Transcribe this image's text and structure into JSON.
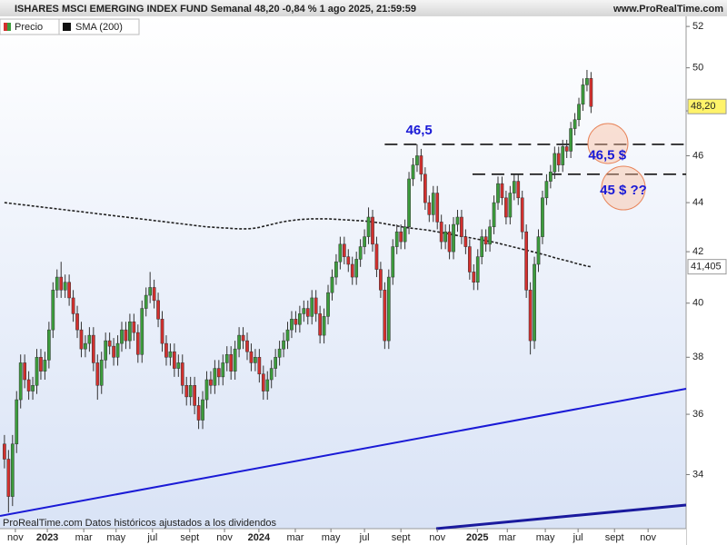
{
  "header": {
    "title": "ISHARES MSCI EMERGING INDEX FUND Semanal 48,20 -0,84 % 1 ago 2025, 21:59:59",
    "site": "www.ProRealTime.com"
  },
  "footer": "ProRealTime.com Datos históricos ajustados a los dividendos",
  "chart_data": {
    "type": "candlestick",
    "log_scale": true,
    "up_color": "#3c9c3c",
    "down_color": "#d2302e",
    "legend": [
      "Precio",
      "SMA (200)"
    ],
    "ylim": [
      32.3,
      52.5
    ],
    "yticks": [
      34,
      36,
      38,
      40,
      42,
      44,
      46,
      48,
      50,
      52
    ],
    "xlim": [
      -1.1,
      168.5
    ],
    "xticks": [
      {
        "value": 2.7,
        "label": "nov"
      },
      {
        "value": 10.6,
        "label": "2023"
      },
      {
        "value": 19.6,
        "label": "mar"
      },
      {
        "value": 27.6,
        "label": "may"
      },
      {
        "value": 36.6,
        "label": "jul"
      },
      {
        "value": 45.8,
        "label": "sept"
      },
      {
        "value": 54.4,
        "label": "nov"
      },
      {
        "value": 62.9,
        "label": "2024"
      },
      {
        "value": 71.9,
        "label": "mar"
      },
      {
        "value": 80.7,
        "label": "may"
      },
      {
        "value": 89,
        "label": "jul"
      },
      {
        "value": 98,
        "label": "sept"
      },
      {
        "value": 107,
        "label": "nov"
      },
      {
        "value": 116.9,
        "label": "2025"
      },
      {
        "value": 124.3,
        "label": "mar"
      },
      {
        "value": 133.7,
        "label": "may"
      },
      {
        "value": 141.8,
        "label": "jul"
      },
      {
        "value": 150.8,
        "label": "sept"
      },
      {
        "value": 159.1,
        "label": "nov"
      }
    ],
    "ohlc": [
      [
        35.0,
        35.3,
        34.2,
        34.5
      ],
      [
        34.5,
        34.8,
        32.8,
        33.3
      ],
      [
        33.3,
        35.3,
        33.0,
        35.0
      ],
      [
        35.0,
        36.8,
        34.7,
        36.5
      ],
      [
        36.5,
        38.1,
        36.2,
        37.8
      ],
      [
        37.8,
        38.1,
        36.9,
        37.2
      ],
      [
        37.2,
        37.5,
        36.5,
        36.8
      ],
      [
        36.8,
        37.3,
        36.5,
        37.0
      ],
      [
        37.0,
        38.3,
        36.7,
        38.0
      ],
      [
        38.0,
        38.3,
        37.2,
        37.5
      ],
      [
        37.5,
        38.2,
        37.2,
        37.9
      ],
      [
        37.9,
        39.3,
        37.6,
        39.0
      ],
      [
        39.0,
        40.8,
        38.7,
        40.5
      ],
      [
        40.5,
        41.3,
        40.2,
        41.0
      ],
      [
        41.0,
        41.6,
        40.2,
        40.5
      ],
      [
        40.5,
        41.1,
        40.2,
        40.8
      ],
      [
        40.8,
        41.1,
        39.9,
        40.2
      ],
      [
        40.2,
        40.5,
        39.3,
        39.6
      ],
      [
        39.6,
        39.9,
        38.7,
        39.0
      ],
      [
        39.0,
        39.3,
        38.0,
        38.3
      ],
      [
        38.3,
        38.8,
        38.0,
        38.5
      ],
      [
        38.5,
        39.1,
        38.2,
        38.8
      ],
      [
        38.8,
        39.1,
        37.5,
        37.8
      ],
      [
        37.8,
        38.1,
        36.5,
        37.0
      ],
      [
        37.0,
        38.2,
        36.7,
        37.9
      ],
      [
        37.9,
        38.9,
        37.6,
        38.6
      ],
      [
        38.6,
        38.9,
        38.1,
        38.4
      ],
      [
        38.4,
        38.7,
        37.7,
        38.0
      ],
      [
        38.0,
        38.8,
        37.7,
        38.5
      ],
      [
        38.5,
        39.3,
        38.2,
        39.0
      ],
      [
        39.0,
        39.3,
        38.3,
        38.6
      ],
      [
        38.6,
        39.6,
        38.3,
        39.3
      ],
      [
        39.3,
        39.6,
        38.6,
        38.9
      ],
      [
        38.9,
        39.2,
        37.8,
        38.1
      ],
      [
        38.1,
        40.1,
        37.8,
        39.8
      ],
      [
        39.8,
        40.6,
        39.5,
        40.3
      ],
      [
        40.3,
        41.2,
        40.0,
        40.6
      ],
      [
        40.6,
        40.9,
        39.8,
        40.1
      ],
      [
        40.1,
        40.4,
        39.1,
        39.4
      ],
      [
        39.4,
        39.7,
        38.2,
        38.5
      ],
      [
        38.5,
        38.8,
        37.7,
        38.0
      ],
      [
        38.0,
        38.5,
        37.7,
        38.2
      ],
      [
        38.2,
        38.5,
        37.3,
        37.6
      ],
      [
        37.6,
        38.1,
        37.3,
        37.8
      ],
      [
        37.8,
        38.1,
        36.7,
        37.0
      ],
      [
        37.0,
        37.3,
        36.3,
        36.6
      ],
      [
        36.6,
        37.3,
        36.3,
        37.0
      ],
      [
        37.0,
        37.3,
        36.0,
        36.3
      ],
      [
        36.3,
        36.6,
        35.5,
        35.8
      ],
      [
        35.8,
        36.8,
        35.5,
        36.5
      ],
      [
        36.5,
        37.5,
        36.2,
        37.2
      ],
      [
        37.2,
        37.5,
        36.7,
        37.0
      ],
      [
        37.0,
        37.9,
        36.7,
        37.6
      ],
      [
        37.6,
        37.9,
        37.0,
        37.3
      ],
      [
        37.3,
        38.1,
        37.0,
        37.8
      ],
      [
        37.8,
        38.4,
        37.5,
        38.1
      ],
      [
        38.1,
        38.4,
        37.2,
        37.5
      ],
      [
        37.5,
        38.6,
        37.2,
        38.3
      ],
      [
        38.3,
        39.1,
        38.0,
        38.8
      ],
      [
        38.8,
        39.1,
        38.3,
        38.6
      ],
      [
        38.6,
        38.9,
        37.9,
        38.2
      ],
      [
        38.2,
        38.5,
        37.5,
        37.8
      ],
      [
        37.8,
        38.3,
        37.5,
        38.0
      ],
      [
        38.0,
        38.3,
        37.1,
        37.4
      ],
      [
        37.4,
        37.7,
        36.5,
        36.8
      ],
      [
        36.8,
        37.5,
        36.5,
        37.2
      ],
      [
        37.2,
        37.9,
        36.9,
        37.6
      ],
      [
        37.6,
        38.3,
        37.3,
        38.0
      ],
      [
        38.0,
        38.6,
        37.7,
        38.3
      ],
      [
        38.3,
        38.9,
        38.0,
        38.6
      ],
      [
        38.6,
        39.3,
        38.3,
        39.0
      ],
      [
        39.0,
        39.7,
        38.7,
        39.4
      ],
      [
        39.4,
        39.7,
        38.9,
        39.2
      ],
      [
        39.2,
        39.9,
        38.9,
        39.6
      ],
      [
        39.6,
        40.1,
        39.3,
        39.8
      ],
      [
        39.8,
        40.1,
        39.2,
        39.5
      ],
      [
        39.5,
        40.5,
        39.2,
        40.2
      ],
      [
        40.2,
        40.5,
        39.3,
        39.6
      ],
      [
        39.6,
        39.9,
        38.5,
        38.8
      ],
      [
        38.8,
        39.8,
        38.5,
        39.5
      ],
      [
        39.5,
        40.7,
        39.2,
        40.4
      ],
      [
        40.4,
        41.3,
        40.1,
        41.0
      ],
      [
        41.0,
        41.9,
        40.7,
        41.6
      ],
      [
        41.6,
        42.6,
        41.3,
        42.3
      ],
      [
        42.3,
        42.6,
        41.5,
        41.8
      ],
      [
        41.8,
        42.1,
        41.2,
        41.5
      ],
      [
        41.5,
        41.8,
        40.7,
        41.0
      ],
      [
        41.0,
        42.0,
        40.7,
        41.7
      ],
      [
        41.7,
        42.5,
        41.4,
        42.2
      ],
      [
        42.2,
        42.9,
        41.9,
        42.6
      ],
      [
        42.6,
        43.8,
        42.3,
        43.4
      ],
      [
        43.4,
        43.7,
        42.0,
        42.3
      ],
      [
        42.3,
        42.6,
        41.0,
        41.3
      ],
      [
        41.3,
        41.6,
        40.2,
        40.5
      ],
      [
        40.5,
        40.8,
        38.3,
        38.6
      ],
      [
        38.6,
        41.3,
        38.3,
        41.0
      ],
      [
        41.0,
        42.5,
        40.7,
        42.2
      ],
      [
        42.2,
        43.1,
        41.9,
        42.8
      ],
      [
        42.8,
        43.1,
        42.1,
        42.4
      ],
      [
        42.4,
        43.3,
        42.1,
        43.0
      ],
      [
        43.0,
        45.3,
        42.7,
        45.0
      ],
      [
        45.0,
        45.9,
        44.7,
        45.6
      ],
      [
        45.6,
        46.5,
        45.3,
        46.0
      ],
      [
        46.0,
        46.3,
        44.9,
        45.2
      ],
      [
        45.2,
        45.5,
        43.7,
        44.0
      ],
      [
        44.0,
        44.3,
        43.2,
        43.5
      ],
      [
        43.5,
        44.7,
        43.2,
        44.4
      ],
      [
        44.4,
        44.7,
        42.9,
        43.2
      ],
      [
        43.2,
        43.5,
        42.1,
        42.4
      ],
      [
        42.4,
        43.1,
        42.1,
        42.8
      ],
      [
        42.8,
        43.1,
        41.7,
        42.0
      ],
      [
        42.0,
        43.4,
        41.7,
        43.1
      ],
      [
        43.1,
        43.7,
        42.8,
        43.4
      ],
      [
        43.4,
        43.7,
        42.3,
        42.6
      ],
      [
        42.6,
        42.9,
        41.9,
        42.2
      ],
      [
        42.2,
        42.5,
        40.9,
        41.2
      ],
      [
        41.2,
        41.5,
        40.5,
        40.8
      ],
      [
        40.8,
        42.1,
        40.5,
        41.8
      ],
      [
        41.8,
        42.9,
        41.5,
        42.6
      ],
      [
        42.6,
        42.9,
        42.0,
        42.3
      ],
      [
        42.3,
        43.3,
        42.0,
        43.0
      ],
      [
        43.0,
        44.3,
        42.7,
        44.0
      ],
      [
        44.0,
        45.1,
        43.7,
        44.8
      ],
      [
        44.8,
        45.1,
        43.9,
        44.2
      ],
      [
        44.2,
        44.5,
        43.1,
        43.4
      ],
      [
        43.4,
        44.7,
        43.1,
        44.4
      ],
      [
        44.4,
        45.2,
        44.1,
        44.9
      ],
      [
        44.9,
        45.2,
        43.9,
        44.2
      ],
      [
        44.2,
        44.5,
        42.5,
        42.8
      ],
      [
        42.8,
        43.1,
        40.2,
        40.5
      ],
      [
        40.5,
        40.8,
        38.1,
        38.6
      ],
      [
        38.6,
        41.8,
        38.3,
        41.5
      ],
      [
        41.5,
        42.9,
        41.2,
        42.6
      ],
      [
        42.6,
        44.5,
        42.3,
        44.2
      ],
      [
        44.2,
        45.2,
        43.9,
        44.9
      ],
      [
        44.9,
        45.6,
        44.6,
        45.3
      ],
      [
        45.3,
        46.4,
        45.0,
        46.1
      ],
      [
        46.1,
        46.4,
        45.3,
        45.6
      ],
      [
        45.6,
        46.7,
        45.3,
        46.4
      ],
      [
        46.4,
        46.7,
        45.9,
        46.2
      ],
      [
        46.2,
        47.5,
        45.9,
        47.2
      ],
      [
        47.2,
        47.9,
        46.9,
        47.6
      ],
      [
        47.6,
        48.6,
        47.3,
        48.3
      ],
      [
        48.3,
        49.5,
        48.0,
        49.2
      ],
      [
        49.2,
        49.9,
        48.9,
        49.5
      ],
      [
        49.5,
        49.8,
        47.9,
        48.2
      ]
    ],
    "sma": {
      "name": "SMA (200)",
      "color": "#222222",
      "values": [
        44.0,
        43.98,
        43.96,
        43.94,
        43.92,
        43.9,
        43.88,
        43.86,
        43.84,
        43.82,
        43.8,
        43.78,
        43.76,
        43.74,
        43.72,
        43.7,
        43.68,
        43.66,
        43.64,
        43.62,
        43.6,
        43.58,
        43.56,
        43.54,
        43.52,
        43.5,
        43.48,
        43.46,
        43.44,
        43.42,
        43.4,
        43.38,
        43.36,
        43.34,
        43.32,
        43.3,
        43.28,
        43.26,
        43.24,
        43.22,
        43.2,
        43.18,
        43.16,
        43.14,
        43.12,
        43.1,
        43.08,
        43.06,
        43.04,
        43.02,
        43.0,
        42.99,
        42.98,
        42.97,
        42.96,
        42.95,
        42.94,
        42.93,
        42.92,
        42.92,
        42.92,
        42.93,
        42.95,
        42.98,
        43.02,
        43.06,
        43.1,
        43.14,
        43.18,
        43.21,
        43.24,
        43.26,
        43.28,
        43.3,
        43.31,
        43.32,
        43.33,
        43.33,
        43.33,
        43.33,
        43.33,
        43.32,
        43.31,
        43.3,
        43.29,
        43.28,
        43.27,
        43.26,
        43.25,
        43.24,
        43.22,
        43.2,
        43.18,
        43.16,
        43.13,
        43.1,
        43.07,
        43.04,
        43.01,
        42.98,
        42.96,
        42.94,
        42.92,
        42.9,
        42.88,
        42.86,
        42.83,
        42.8,
        42.77,
        42.74,
        42.71,
        42.68,
        42.65,
        42.62,
        42.59,
        42.56,
        42.53,
        42.5,
        42.47,
        42.44,
        42.41,
        42.38,
        42.34,
        42.3,
        42.26,
        42.22,
        42.18,
        42.14,
        42.1,
        42.06,
        42.02,
        41.98,
        41.94,
        41.9,
        41.86,
        41.81,
        41.76,
        41.72,
        41.68,
        41.64,
        41.6,
        41.55,
        41.51,
        41.47,
        41.43,
        41.405
      ]
    },
    "price_tags": [
      {
        "value": 48.2,
        "label": "48,20",
        "color": "#fff36a"
      },
      {
        "value": 41.405,
        "label": "41,405",
        "color": "#ffffff"
      }
    ],
    "levels": [
      {
        "value": 46.5,
        "from": 94.0
      },
      {
        "value": 45.2,
        "from": 115.7
      }
    ],
    "annotations": [
      {
        "text": "46,5",
        "at": [
          102.5,
          47.1
        ]
      },
      {
        "text": "46,5 $",
        "at": [
          149,
          46.0
        ]
      },
      {
        "text": "45 $ ??",
        "at": [
          153,
          44.5
        ]
      }
    ]
  }
}
